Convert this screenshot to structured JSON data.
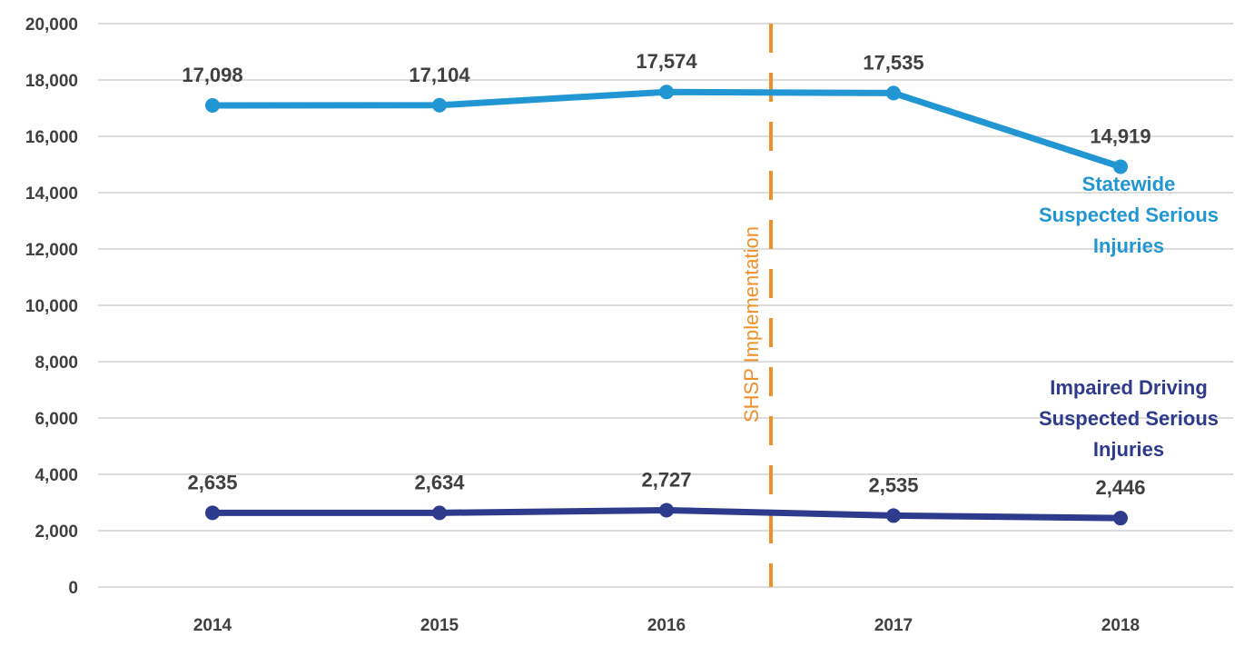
{
  "chart_data": {
    "type": "line",
    "title": "",
    "xlabel": "",
    "ylabel": "",
    "categories": [
      "2014",
      "2015",
      "2016",
      "2017",
      "2018"
    ],
    "ylim": [
      0,
      20000
    ],
    "yticks": [
      0,
      2000,
      4000,
      6000,
      8000,
      10000,
      12000,
      14000,
      16000,
      18000,
      20000
    ],
    "ytick_labels": [
      "0",
      "2,000",
      "4,000",
      "6,000",
      "8,000",
      "10,000",
      "12,000",
      "14,000",
      "16,000",
      "18,000",
      "20,000"
    ],
    "grid": true,
    "series": [
      {
        "name": "Statewide Suspected Serious Injuries",
        "label_lines": [
          "Statewide",
          "Suspected Serious",
          "Injuries"
        ],
        "color": "#2196d3",
        "values": [
          17098,
          17104,
          17574,
          17535,
          14919
        ],
        "data_labels": [
          "17,098",
          "17,104",
          "17,574",
          "17,535",
          "14,919"
        ]
      },
      {
        "name": "Impaired Driving Suspected Serious Injuries",
        "label_lines": [
          "Impaired Driving",
          "Suspected Serious",
          "Injuries"
        ],
        "color": "#2e3a8c",
        "values": [
          2635,
          2634,
          2727,
          2535,
          2446
        ],
        "data_labels": [
          "2,635",
          "2,634",
          "2,727",
          "2,535",
          "2,446"
        ]
      }
    ],
    "annotations": [
      {
        "text": "SHSP Implementation",
        "color": "#f0902a",
        "x_between": [
          "2016",
          "2017"
        ],
        "x_fraction": 0.46
      }
    ]
  }
}
